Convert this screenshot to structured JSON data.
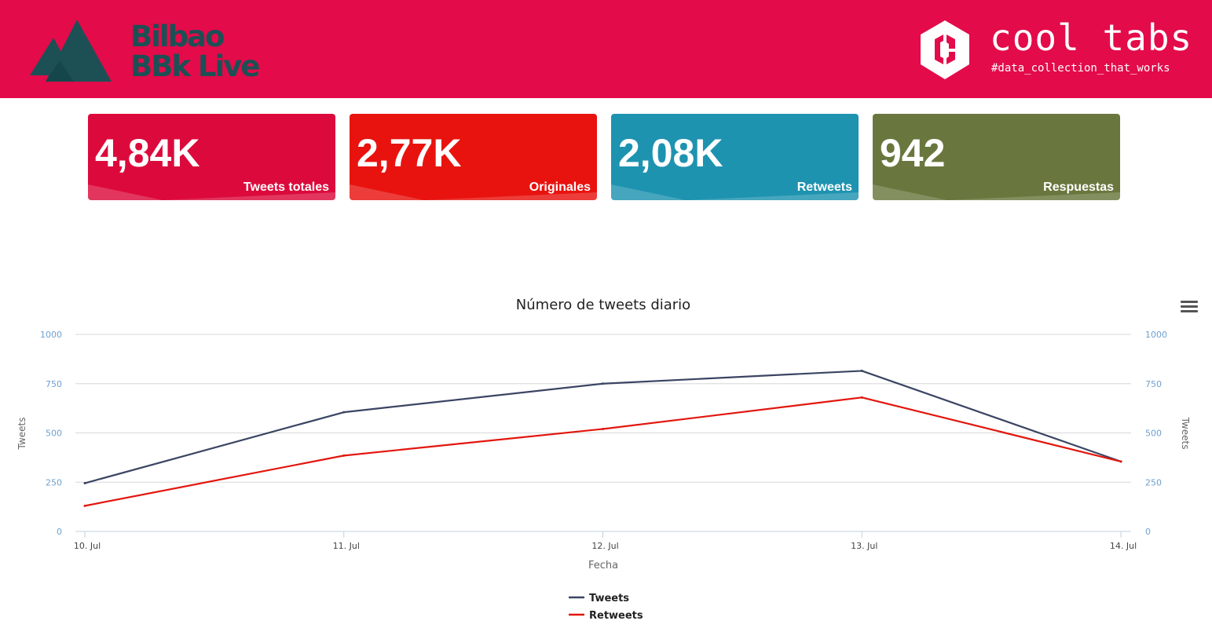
{
  "header": {
    "festival_logo": {
      "line1": "Bilbao",
      "line2": "BBk Live",
      "icon": "mountain-icon"
    },
    "brand_logo": {
      "title": "cool tabs",
      "tagline": "#data_collection_that_works",
      "icon": "cooltabs-hexagon-icon"
    },
    "background_color": "#e30b4a"
  },
  "kpis": [
    {
      "value": "4,84K",
      "label": "Tweets totales",
      "color": "#dc0a3c"
    },
    {
      "value": "2,77K",
      "label": "Originales",
      "color": "#e8130f"
    },
    {
      "value": "2,08K",
      "label": "Retweets",
      "color": "#1e93b0"
    },
    {
      "value": "942",
      "label": "Respuestas",
      "color": "#69773e"
    }
  ],
  "chart_menu": {
    "icon": "hamburger-menu-icon"
  },
  "chart_data": {
    "type": "line",
    "title": "Número de tweets diario",
    "xlabel": "Fecha",
    "ylabel": "Tweets",
    "ylabel_right": "Tweets",
    "categories": [
      "10. Jul",
      "11. Jul",
      "12. Jul",
      "13. Jul",
      "14. Jul"
    ],
    "y_ticks": [
      "0",
      "250",
      "500",
      "750",
      "1000"
    ],
    "ylim": [
      0,
      1000
    ],
    "grid": true,
    "legend_position": "bottom-center",
    "series": [
      {
        "name": "Tweets",
        "color": "#3a4563",
        "values": [
          245,
          605,
          750,
          815,
          355
        ]
      },
      {
        "name": "Retweets",
        "color": "#e2160e",
        "values": [
          130,
          385,
          520,
          680,
          355
        ]
      }
    ]
  }
}
